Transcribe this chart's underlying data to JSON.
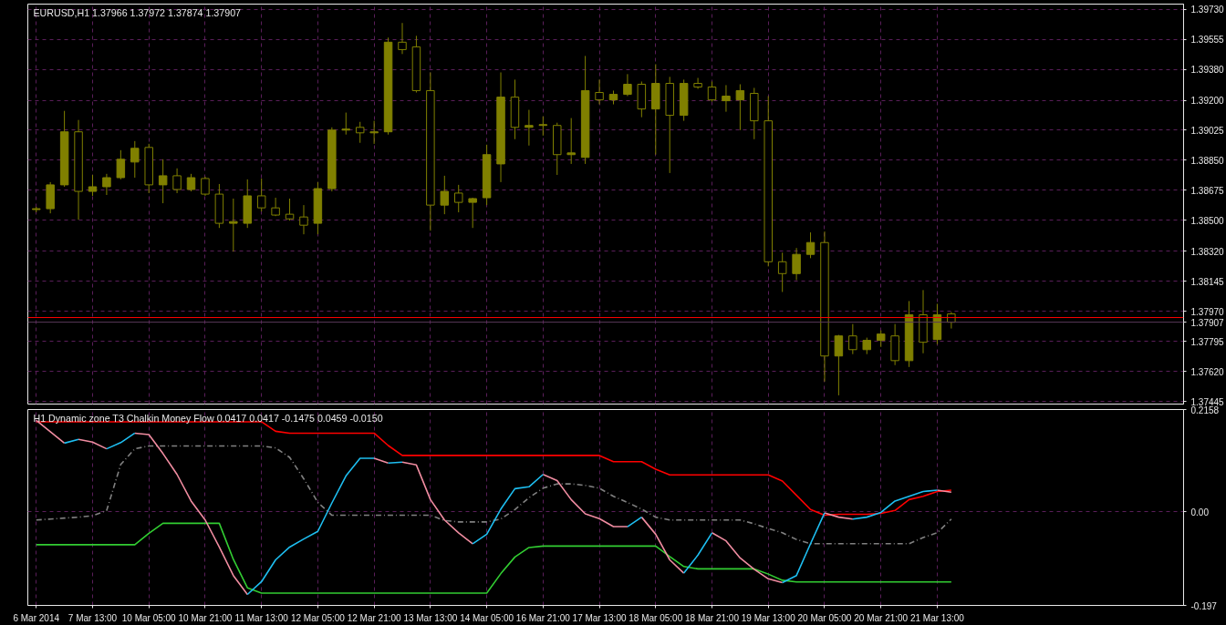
{
  "chart_data": [
    {
      "type": "candlestick",
      "title": "EURUSD,H1  1.37966 1.37972 1.37874 1.37907",
      "color": "#808000",
      "grid": true,
      "tick_labels": "y",
      "categories": [
        null,
        null,
        null,
        null,
        null,
        null,
        null,
        null,
        null,
        null,
        null,
        null,
        null,
        null,
        null,
        null,
        null,
        null,
        null,
        null,
        null,
        null,
        null,
        null,
        null,
        null,
        null,
        null,
        null,
        null,
        null,
        null,
        null,
        null,
        null,
        null,
        null,
        null,
        null,
        null,
        null,
        null,
        null,
        null,
        null,
        null,
        null,
        null,
        null,
        null,
        null,
        null,
        null,
        null,
        null,
        null,
        null,
        null,
        null,
        null,
        null,
        null,
        null,
        null,
        null,
        null,
        null,
        null,
        null,
        null,
        null,
        null,
        null,
        null,
        null,
        null,
        null,
        null,
        null,
        null,
        null,
        null
      ],
      "ylim": [
        1.3743,
        1.3976
      ],
      "yticks": [
        {
          "value": 1.37445,
          "label": "1.37445"
        },
        {
          "value": 1.3762,
          "label": "1.37620"
        },
        {
          "value": 1.37795,
          "label": "1.37795"
        },
        {
          "value": 1.3797,
          "label": "1.37970"
        },
        {
          "value": 1.38145,
          "label": "1.38145"
        },
        {
          "value": 1.3832,
          "label": "1.38320"
        },
        {
          "value": 1.385,
          "label": "1.38500"
        },
        {
          "value": 1.38675,
          "label": "1.38675"
        },
        {
          "value": 1.3885,
          "label": "1.38850"
        },
        {
          "value": 1.39025,
          "label": "1.39025"
        },
        {
          "value": 1.392,
          "label": "1.39200"
        },
        {
          "value": 1.3938,
          "label": "1.39380"
        },
        {
          "value": 1.39555,
          "label": "1.39555"
        },
        {
          "value": 1.3973,
          "label": "1.39730"
        }
      ],
      "ref_lines": [
        {
          "axis": "y",
          "value": 1.37934,
          "color": "#ff0000"
        },
        {
          "axis": "y",
          "value": 1.37907,
          "label": "1.37907",
          "color": "#5a3a5a"
        }
      ],
      "ohlc": [
        [
          1.38563,
          1.38579,
          1.38547,
          1.38568
        ],
        [
          1.38568,
          1.38723,
          1.38541,
          1.38707
        ],
        [
          1.38707,
          1.39138,
          1.38696,
          1.39016
        ],
        [
          1.39016,
          1.39085,
          1.38504,
          1.38669
        ],
        [
          1.38669,
          1.38765,
          1.38643,
          1.38696
        ],
        [
          1.38696,
          1.38771,
          1.38648,
          1.38749
        ],
        [
          1.38749,
          1.38909,
          1.38739,
          1.38856
        ],
        [
          1.3884,
          1.38962,
          1.38749,
          1.3892
        ],
        [
          1.38925,
          1.38946,
          1.38659,
          1.38707
        ],
        [
          1.38707,
          1.38856,
          1.386,
          1.3876
        ],
        [
          1.3876,
          1.38803,
          1.38659,
          1.3868
        ],
        [
          1.3868,
          1.38771,
          1.38669,
          1.38749
        ],
        [
          1.38744,
          1.38755,
          1.38643,
          1.38653
        ],
        [
          1.38653,
          1.38712,
          1.38456,
          1.38483
        ],
        [
          1.38483,
          1.38627,
          1.38318,
          1.38493
        ],
        [
          1.38483,
          1.38739,
          1.38456,
          1.38643
        ],
        [
          1.38643,
          1.38744,
          1.38552,
          1.38573
        ],
        [
          1.38573,
          1.38632,
          1.38525,
          1.38531
        ],
        [
          1.38536,
          1.38627,
          1.38499,
          1.38509
        ],
        [
          1.3852,
          1.38589,
          1.38419,
          1.38472
        ],
        [
          1.38483,
          1.38723,
          1.38419,
          1.38685
        ],
        [
          1.38685,
          1.39042,
          1.38669,
          1.39026
        ],
        [
          1.39026,
          1.39128,
          1.39,
          1.39032
        ],
        [
          1.39042,
          1.39074,
          1.38952,
          1.3901
        ],
        [
          1.3901,
          1.3908,
          1.38946,
          1.39016
        ],
        [
          1.39016,
          1.39565,
          1.39,
          1.39538
        ],
        [
          1.39538,
          1.3965,
          1.39469,
          1.39495
        ],
        [
          1.39511,
          1.39575,
          1.39245,
          1.39256
        ],
        [
          1.39256,
          1.39362,
          1.3844,
          1.38589
        ],
        [
          1.38589,
          1.3876,
          1.38536,
          1.38669
        ],
        [
          1.38659,
          1.38707,
          1.38547,
          1.38605
        ],
        [
          1.38605,
          1.38632,
          1.38456,
          1.38627
        ],
        [
          1.38632,
          1.38941,
          1.38589,
          1.38883
        ],
        [
          1.38829,
          1.39362,
          1.38723,
          1.39218
        ],
        [
          1.39218,
          1.3932,
          1.38973,
          1.39042
        ],
        [
          1.39042,
          1.39144,
          1.38936,
          1.39053
        ],
        [
          1.39053,
          1.39106,
          1.38994,
          1.39058
        ],
        [
          1.39053,
          1.39069,
          1.38765,
          1.38883
        ],
        [
          1.38883,
          1.39096,
          1.38829,
          1.38893
        ],
        [
          1.38867,
          1.39458,
          1.38829,
          1.39256
        ],
        [
          1.39245,
          1.3932,
          1.39176,
          1.39202
        ],
        [
          1.39202,
          1.39256,
          1.39176,
          1.39234
        ],
        [
          1.39234,
          1.39352,
          1.39224,
          1.39293
        ],
        [
          1.39293,
          1.39309,
          1.39101,
          1.39149
        ],
        [
          1.39149,
          1.3941,
          1.38883,
          1.39298
        ],
        [
          1.39298,
          1.39336,
          1.38776,
          1.39112
        ],
        [
          1.39112,
          1.3932,
          1.3908,
          1.39298
        ],
        [
          1.39298,
          1.3933,
          1.39266,
          1.39277
        ],
        [
          1.39277,
          1.39309,
          1.39192,
          1.39202
        ],
        [
          1.39197,
          1.39288,
          1.39133,
          1.39224
        ],
        [
          1.39202,
          1.39293,
          1.39026,
          1.39256
        ],
        [
          1.3924,
          1.39272,
          1.38973,
          1.3908
        ],
        [
          1.3908,
          1.39224,
          1.38232,
          1.38259
        ],
        [
          1.38259,
          1.38312,
          1.38083,
          1.3819
        ],
        [
          1.3819,
          1.38339,
          1.38152,
          1.38302
        ],
        [
          1.38302,
          1.3843,
          1.3828,
          1.38371
        ],
        [
          1.38371,
          1.38435,
          1.37561,
          1.3771
        ],
        [
          1.3771,
          1.37833,
          1.37481,
          1.37827
        ],
        [
          1.37827,
          1.37896,
          1.37721,
          1.37747
        ],
        [
          1.37747,
          1.37817,
          1.37721,
          1.37801
        ],
        [
          1.37801,
          1.37859,
          1.37763,
          1.37838
        ],
        [
          1.37827,
          1.37896,
          1.37657,
          1.37683
        ],
        [
          1.37683,
          1.3803,
          1.37646,
          1.3795
        ],
        [
          1.3795,
          1.38094,
          1.37726,
          1.3779
        ],
        [
          1.37806,
          1.38014,
          1.37779,
          1.3795
        ],
        [
          1.37955,
          1.37966,
          1.3787,
          1.37907
        ],
        null,
        null,
        null,
        null,
        null,
        null,
        null,
        null,
        null,
        null,
        null,
        null,
        null,
        null,
        null,
        null
      ]
    },
    {
      "type": "line",
      "title": "H1 Dynamic zone T3 Chalkin Money Flow  0.0417 0.0417 -0.1475 0.0459 -0.0150",
      "grid": true,
      "categories": [
        "6 Mar 2014",
        null,
        null,
        null,
        "7 Mar 13:00",
        null,
        null,
        null,
        "10 Mar 05:00",
        null,
        null,
        null,
        "10 Mar 21:00",
        null,
        null,
        null,
        "11 Mar 13:00",
        null,
        null,
        null,
        "12 Mar 05:00",
        null,
        null,
        null,
        "12 Mar 21:00",
        null,
        null,
        null,
        "13 Mar 13:00",
        null,
        null,
        null,
        "14 Mar 05:00",
        null,
        null,
        null,
        "16 Mar 21:00",
        null,
        null,
        null,
        "17 Mar 13:00",
        null,
        null,
        null,
        "18 Mar 05:00",
        null,
        null,
        null,
        "18 Mar 21:00",
        null,
        null,
        null,
        "19 Mar 13:00",
        null,
        null,
        null,
        "20 Mar 05:00",
        null,
        null,
        null,
        "20 Mar 21:00",
        null,
        null,
        null,
        "21 Mar 13:00",
        null,
        null,
        null,
        null,
        null,
        null,
        null,
        null,
        null,
        null,
        null,
        null,
        null,
        null,
        null,
        null,
        null
      ],
      "ylim": [
        -0.197,
        0.2158
      ],
      "yticks": [
        {
          "value": -0.197,
          "label": "-0.197"
        },
        {
          "value": 0,
          "label": "0.00"
        },
        {
          "value": 0.2158,
          "label": "0.2158"
        }
      ],
      "series": [
        {
          "color": "#ff0000",
          "values": [
            0.19,
            0.19,
            0.19,
            0.19,
            0.19,
            0.19,
            0.19,
            0.19,
            0.19,
            0.19,
            0.19,
            0.19,
            0.19,
            0.19,
            0.19,
            0.19,
            0.19,
            0.17,
            0.166,
            0.166,
            0.166,
            0.166,
            0.166,
            0.166,
            0.166,
            0.14,
            0.119,
            0.119,
            0.119,
            0.119,
            0.119,
            0.119,
            0.119,
            0.119,
            0.119,
            0.119,
            0.119,
            0.119,
            0.119,
            0.119,
            0.119,
            0.106,
            0.106,
            0.106,
            0.09,
            0.078,
            0.078,
            0.078,
            0.078,
            0.078,
            0.078,
            0.078,
            0.078,
            0.065,
            0.035,
            0.005,
            -0.007,
            -0.005,
            -0.005,
            -0.005,
            -0.003,
            0.003,
            0.026,
            0.033,
            0.043,
            0.0459,
            null,
            null,
            null,
            null,
            null,
            null,
            null,
            null,
            null,
            null,
            null,
            null,
            null,
            null,
            null,
            null
          ]
        },
        {
          "color": "#32cd32",
          "values": [
            -0.069,
            -0.069,
            -0.069,
            -0.069,
            -0.069,
            -0.069,
            -0.069,
            -0.069,
            -0.045,
            -0.024,
            -0.024,
            -0.024,
            -0.024,
            -0.024,
            -0.1,
            -0.16,
            -0.171,
            -0.171,
            -0.171,
            -0.171,
            -0.171,
            -0.171,
            -0.171,
            -0.171,
            -0.171,
            -0.171,
            -0.171,
            -0.171,
            -0.171,
            -0.171,
            -0.171,
            -0.171,
            -0.171,
            -0.13,
            -0.095,
            -0.075,
            -0.072,
            -0.072,
            -0.072,
            -0.072,
            -0.072,
            -0.072,
            -0.072,
            -0.072,
            -0.072,
            -0.094,
            -0.115,
            -0.12,
            -0.12,
            -0.12,
            -0.12,
            -0.12,
            -0.131,
            -0.144,
            -0.1475,
            -0.1475,
            -0.1475,
            -0.1475,
            -0.1475,
            -0.1475,
            -0.1475,
            -0.1475,
            -0.1475,
            -0.1475,
            -0.1475,
            -0.1475,
            null,
            null,
            null,
            null,
            null,
            null,
            null,
            null,
            null,
            null,
            null,
            null,
            null,
            null,
            null,
            null
          ]
        },
        {
          "color": "#808080",
          "line_style": "dashed",
          "values": [
            -0.017,
            -0.015,
            -0.013,
            -0.011,
            -0.008,
            0.003,
            0.1,
            0.133,
            0.139,
            0.139,
            0.139,
            0.139,
            0.139,
            0.139,
            0.139,
            0.139,
            0.139,
            0.135,
            0.115,
            0.07,
            0.02,
            -0.007,
            -0.007,
            -0.007,
            -0.007,
            -0.007,
            -0.007,
            -0.007,
            -0.007,
            -0.018,
            -0.021,
            -0.021,
            -0.021,
            -0.015,
            0.005,
            0.03,
            0.05,
            0.059,
            0.059,
            0.056,
            0.05,
            0.033,
            0.02,
            0.006,
            -0.011,
            -0.017,
            -0.017,
            -0.017,
            -0.017,
            -0.017,
            -0.017,
            -0.025,
            -0.035,
            -0.044,
            -0.058,
            -0.067,
            -0.067,
            -0.067,
            -0.067,
            -0.067,
            -0.067,
            -0.067,
            -0.067,
            -0.054,
            -0.044,
            -0.015,
            null,
            null,
            null,
            null,
            null,
            null,
            null,
            null,
            null,
            null,
            null,
            null,
            null,
            null,
            null,
            null
          ]
        },
        {
          "color": "#f08ca0",
          "values": [
            0.193,
            0.169,
            0.145,
            null,
            null,
            null,
            null,
            0.166,
            0.163,
            0.123,
            0.079,
            0.023,
            -0.017,
            -0.074,
            -0.134,
            -0.174,
            null,
            null,
            null,
            null,
            null,
            null,
            null,
            null,
            null,
            null,
            0.105,
            0.099,
            0.026,
            -0.017,
            -0.044,
            -0.067,
            null,
            null,
            null,
            null,
            null,
            null,
            null,
            null,
            null,
            null,
            null,
            -0.011,
            -0.047,
            -0.101,
            -0.129,
            null,
            null,
            null,
            null,
            null,
            null,
            null,
            null,
            null,
            -0.002,
            -0.011,
            -0.015,
            null,
            null,
            null,
            null,
            null,
            null,
            null,
            null,
            null,
            null,
            null,
            null,
            null,
            null,
            null,
            null,
            null,
            null,
            null,
            null,
            null,
            null,
            null
          ]
        },
        {
          "color": "#f08ca1",
          "values": [
            null,
            null,
            null,
            0.153,
            0.147,
            0.133,
            null,
            null,
            null,
            null,
            null,
            null,
            null,
            null,
            null,
            null,
            null,
            null,
            null,
            null,
            null,
            null,
            null,
            null,
            0.113,
            0.103,
            null,
            null,
            null,
            null,
            null,
            null,
            null,
            null,
            null,
            null,
            0.079,
            0.066,
            0.026,
            -0.004,
            -0.014,
            -0.031,
            -0.031,
            null,
            null,
            null,
            null,
            null,
            -0.044,
            -0.061,
            -0.097,
            -0.121,
            -0.141,
            -0.149,
            null,
            null,
            null,
            null,
            null,
            null,
            null,
            null,
            null,
            null,
            0.046,
            0.0417,
            null,
            null,
            null,
            null,
            null,
            null,
            null,
            null,
            null,
            null,
            null,
            null,
            null,
            null,
            null,
            null
          ]
        },
        {
          "color": "#1ebef0",
          "values": [
            null,
            null,
            0.145,
            0.153,
            null,
            null,
            null,
            null,
            null,
            null,
            null,
            null,
            null,
            null,
            null,
            -0.174,
            -0.147,
            -0.101,
            -0.074,
            -0.057,
            -0.041,
            0.019,
            0.076,
            0.113,
            0.113,
            null,
            null,
            null,
            null,
            null,
            null,
            -0.067,
            -0.047,
            0.006,
            0.049,
            0.053,
            0.079,
            null,
            null,
            null,
            null,
            null,
            null,
            null,
            null,
            null,
            -0.129,
            -0.091,
            -0.044,
            null,
            null,
            null,
            null,
            null,
            null,
            null,
            null,
            null,
            -0.015,
            -0.011,
            -0.001,
            0.023,
            0.033,
            0.043,
            0.046,
            null,
            null,
            null,
            null,
            null,
            null,
            null,
            null,
            null,
            null,
            null,
            null,
            null,
            null,
            null,
            null,
            null
          ]
        },
        {
          "color": "#1ebef1",
          "values": [
            null,
            null,
            null,
            null,
            null,
            0.133,
            0.146,
            0.166,
            null,
            null,
            null,
            null,
            null,
            null,
            null,
            null,
            null,
            null,
            null,
            null,
            null,
            null,
            null,
            null,
            null,
            0.103,
            0.105,
            null,
            null,
            null,
            null,
            null,
            null,
            null,
            null,
            null,
            null,
            null,
            null,
            null,
            null,
            null,
            -0.031,
            -0.011,
            null,
            null,
            null,
            null,
            null,
            null,
            null,
            null,
            null,
            -0.149,
            -0.134,
            -0.067,
            -0.002,
            null,
            null,
            null,
            null,
            null,
            null,
            null,
            null,
            null,
            null,
            null,
            null,
            null,
            null,
            null,
            null,
            null,
            null,
            null,
            null,
            null,
            null,
            null,
            null,
            null
          ]
        }
      ]
    }
  ]
}
